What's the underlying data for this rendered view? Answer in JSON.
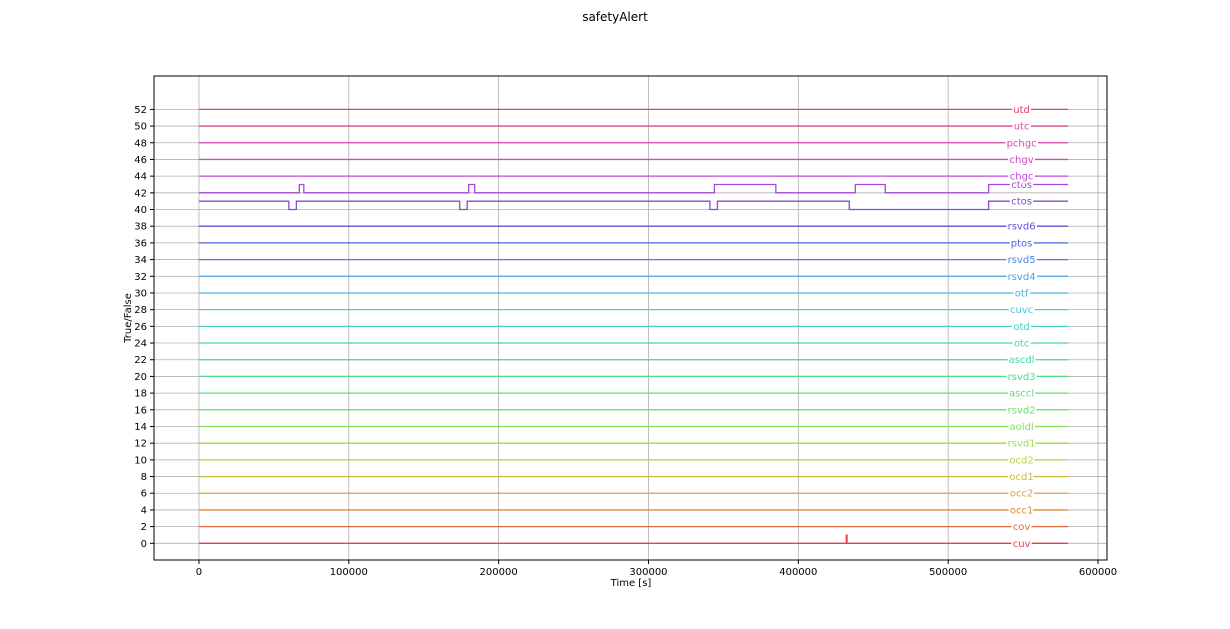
{
  "chart_data": {
    "type": "line",
    "title": "safetyAlert",
    "xlabel": "Time [s]",
    "ylabel": "True/False",
    "xlim": [
      -30000,
      606000
    ],
    "ylim": [
      -2,
      56
    ],
    "xticks": [
      0,
      100000,
      200000,
      300000,
      400000,
      500000,
      600000
    ],
    "yticks": [
      0,
      2,
      4,
      6,
      8,
      10,
      12,
      14,
      16,
      18,
      20,
      22,
      24,
      26,
      28,
      30,
      32,
      34,
      36,
      38,
      40,
      42,
      44,
      46,
      48,
      50,
      52
    ],
    "grid": true,
    "label_x": 549000,
    "series": [
      {
        "name": "cuv",
        "color": "#e8404a",
        "points": [
          [
            0,
            0
          ],
          [
            432000,
            0
          ],
          [
            432000,
            1
          ],
          [
            432500,
            1
          ],
          [
            432500,
            0
          ],
          [
            580000,
            0
          ]
        ]
      },
      {
        "name": "cov",
        "color": "#e8663d",
        "points": [
          [
            0,
            2
          ],
          [
            580000,
            2
          ]
        ]
      },
      {
        "name": "occ1",
        "color": "#e08a3a",
        "points": [
          [
            0,
            4
          ],
          [
            580000,
            4
          ]
        ]
      },
      {
        "name": "occ2",
        "color": "#d8a838",
        "points": [
          [
            0,
            6
          ],
          [
            580000,
            6
          ]
        ]
      },
      {
        "name": "ocd1",
        "color": "#c8bf3a",
        "points": [
          [
            0,
            8
          ],
          [
            580000,
            8
          ]
        ]
      },
      {
        "name": "ocd2",
        "color": "#b6d43c",
        "points": [
          [
            0,
            10
          ],
          [
            580000,
            10
          ]
        ]
      },
      {
        "name": "rsvd1",
        "color": "#9ede48",
        "points": [
          [
            0,
            12
          ],
          [
            580000,
            12
          ]
        ]
      },
      {
        "name": "aoldl",
        "color": "#84e05a",
        "points": [
          [
            0,
            14
          ],
          [
            580000,
            14
          ]
        ]
      },
      {
        "name": "rsvd2",
        "color": "#6ee068",
        "points": [
          [
            0,
            16
          ],
          [
            580000,
            16
          ]
        ]
      },
      {
        "name": "asccl",
        "color": "#58e078",
        "points": [
          [
            0,
            18
          ],
          [
            580000,
            18
          ]
        ]
      },
      {
        "name": "rsvd3",
        "color": "#4cdc8c",
        "points": [
          [
            0,
            20
          ],
          [
            580000,
            20
          ]
        ]
      },
      {
        "name": "ascdl",
        "color": "#44d8a0",
        "points": [
          [
            0,
            22
          ],
          [
            580000,
            22
          ]
        ]
      },
      {
        "name": "otc",
        "color": "#42d4b4",
        "points": [
          [
            0,
            24
          ],
          [
            580000,
            24
          ]
        ]
      },
      {
        "name": "otd",
        "color": "#44d0c8",
        "points": [
          [
            0,
            26
          ],
          [
            580000,
            26
          ]
        ]
      },
      {
        "name": "cuvc",
        "color": "#48c8d8",
        "points": [
          [
            0,
            28
          ],
          [
            580000,
            28
          ]
        ]
      },
      {
        "name": "otf",
        "color": "#4cb6e0",
        "points": [
          [
            0,
            30
          ],
          [
            580000,
            30
          ]
        ]
      },
      {
        "name": "rsvd4",
        "color": "#4aa0e0",
        "points": [
          [
            0,
            32
          ],
          [
            580000,
            32
          ]
        ]
      },
      {
        "name": "rsvd5",
        "color": "#4a84e0",
        "points": [
          [
            0,
            34
          ],
          [
            580000,
            34
          ]
        ]
      },
      {
        "name": "ptos",
        "color": "#4a62dc",
        "points": [
          [
            0,
            36
          ],
          [
            580000,
            36
          ]
        ]
      },
      {
        "name": "rsvd6",
        "color": "#6050d8",
        "points": [
          [
            0,
            38
          ],
          [
            580000,
            38
          ]
        ]
      },
      {
        "name": "ctos",
        "color": "#8848d8",
        "points": [
          [
            0,
            41
          ],
          [
            60000,
            41
          ],
          [
            60000,
            40
          ],
          [
            65000,
            40
          ],
          [
            65000,
            41
          ],
          [
            174000,
            41
          ],
          [
            174000,
            40
          ],
          [
            179000,
            40
          ],
          [
            179000,
            41
          ],
          [
            341000,
            41
          ],
          [
            341000,
            40
          ],
          [
            346000,
            40
          ],
          [
            346000,
            41
          ],
          [
            434000,
            41
          ],
          [
            434000,
            40
          ],
          [
            527000,
            40
          ],
          [
            527000,
            41
          ],
          [
            580000,
            41
          ]
        ]
      },
      {
        "name": "ctos",
        "color": "#a448d8",
        "points": [
          [
            0,
            42
          ],
          [
            67000,
            42
          ],
          [
            67000,
            43
          ],
          [
            70000,
            43
          ],
          [
            70000,
            42
          ],
          [
            180000,
            42
          ],
          [
            180000,
            43
          ],
          [
            184000,
            43
          ],
          [
            184000,
            42
          ],
          [
            344000,
            42
          ],
          [
            344000,
            43
          ],
          [
            385000,
            43
          ],
          [
            385000,
            42
          ],
          [
            438000,
            42
          ],
          [
            438000,
            43
          ],
          [
            458000,
            43
          ],
          [
            458000,
            42
          ],
          [
            527000,
            42
          ],
          [
            527000,
            43
          ],
          [
            580000,
            43
          ]
        ]
      },
      {
        "name": "chgc",
        "color": "#c048d4",
        "points": [
          [
            0,
            44
          ],
          [
            580000,
            44
          ]
        ]
      },
      {
        "name": "chgv",
        "color": "#d048c8",
        "points": [
          [
            0,
            46
          ],
          [
            580000,
            46
          ]
        ]
      },
      {
        "name": "pchgc",
        "color": "#d848b0",
        "points": [
          [
            0,
            48
          ],
          [
            580000,
            48
          ]
        ]
      },
      {
        "name": "utc",
        "color": "#dc4894",
        "points": [
          [
            0,
            50
          ],
          [
            580000,
            50
          ]
        ]
      },
      {
        "name": "utd",
        "color": "#e4406c",
        "points": [
          [
            0,
            52
          ],
          [
            580000,
            52
          ]
        ]
      }
    ],
    "label_overrides": [
      {
        "series_index": 20,
        "y": 41
      },
      {
        "series_index": 21,
        "y": 43
      }
    ]
  }
}
